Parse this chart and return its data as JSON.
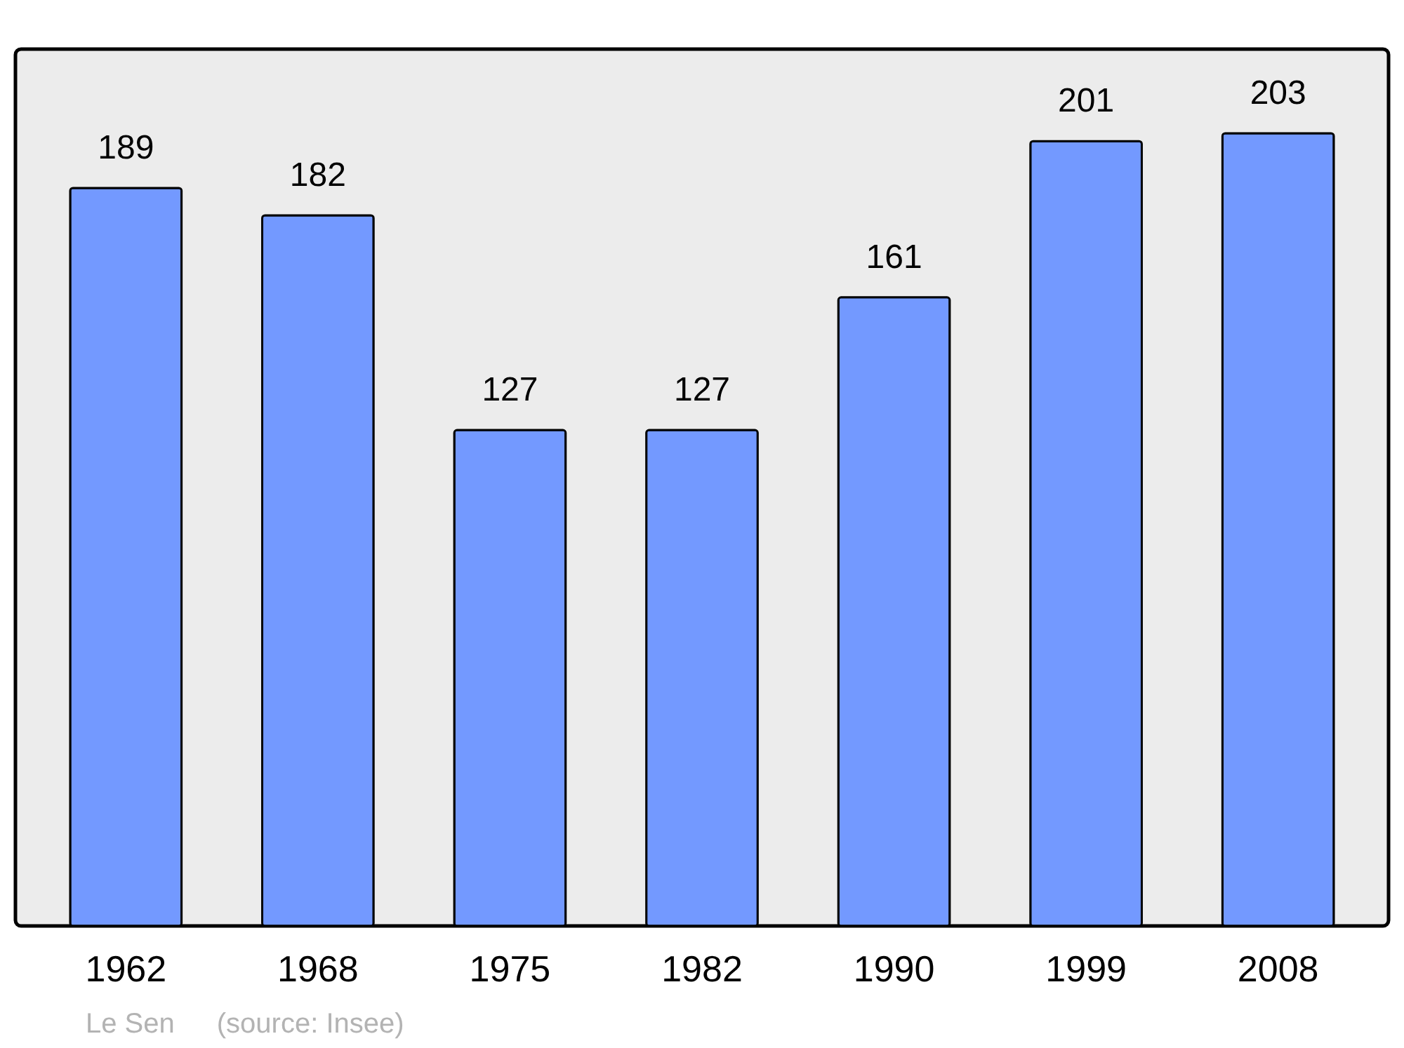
{
  "chart_data": {
    "type": "bar",
    "categories": [
      "1962",
      "1968",
      "1975",
      "1982",
      "1990",
      "1999",
      "2008"
    ],
    "values": [
      189,
      182,
      127,
      127,
      161,
      201,
      203
    ],
    "color": "#7399ff",
    "data_labels": true,
    "grid": false,
    "tick_labels": "x",
    "annotations": [
      "Le Sen",
      "(source: Insee)"
    ]
  }
}
